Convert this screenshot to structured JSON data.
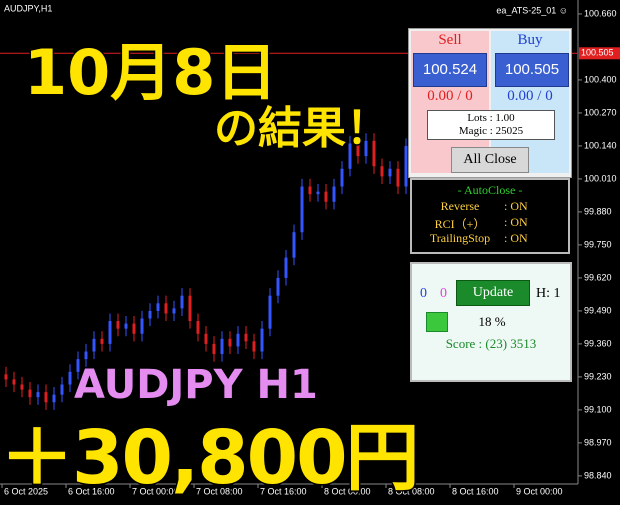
{
  "chart_data": {
    "type": "candlestick",
    "title": "AUDJPY,H1",
    "expert": "ea_ATS-25_01 ☺",
    "up_color": "#3355ff",
    "down_color": "#e02020",
    "open": [
      99.24,
      99.22,
      99.2,
      99.18,
      99.15,
      99.17,
      99.13,
      99.16,
      99.2,
      99.25,
      99.3,
      99.33,
      99.38,
      99.36,
      99.45,
      99.42,
      99.44,
      99.4,
      99.46,
      99.49,
      99.52,
      99.48,
      99.5,
      99.55,
      99.45,
      99.4,
      99.36,
      99.32,
      99.38,
      99.35,
      99.4,
      99.37,
      99.33,
      99.42,
      99.55,
      99.62,
      99.7,
      99.8,
      99.98,
      99.95,
      99.96,
      99.92,
      99.98,
      100.05,
      100.15,
      100.1,
      100.16,
      100.06,
      100.02,
      100.05,
      99.98
    ],
    "high": [
      99.27,
      99.25,
      99.23,
      99.21,
      99.2,
      99.2,
      99.19,
      99.23,
      99.28,
      99.33,
      99.36,
      99.41,
      99.41,
      99.48,
      99.48,
      99.47,
      99.47,
      99.49,
      99.52,
      99.55,
      99.55,
      99.53,
      99.58,
      99.58,
      99.48,
      99.43,
      99.39,
      99.41,
      99.41,
      99.43,
      99.43,
      99.4,
      99.45,
      99.58,
      99.65,
      99.73,
      99.83,
      100.01,
      100.01,
      99.99,
      99.99,
      100.01,
      100.08,
      100.18,
      100.18,
      100.19,
      100.19,
      100.09,
      100.08,
      100.08,
      100.17
    ],
    "low": [
      99.19,
      99.17,
      99.15,
      99.12,
      99.12,
      99.1,
      99.1,
      99.13,
      99.17,
      99.22,
      99.27,
      99.3,
      99.33,
      99.33,
      99.39,
      99.39,
      99.37,
      99.37,
      99.43,
      99.46,
      99.45,
      99.45,
      99.47,
      99.42,
      99.37,
      99.33,
      99.29,
      99.29,
      99.32,
      99.32,
      99.34,
      99.3,
      99.3,
      99.39,
      99.52,
      99.59,
      99.67,
      99.77,
      99.92,
      99.92,
      99.89,
      99.89,
      99.95,
      100.02,
      100.07,
      100.07,
      100.03,
      99.99,
      99.99,
      99.95,
      99.95
    ],
    "close": [
      99.22,
      99.2,
      99.18,
      99.15,
      99.17,
      99.13,
      99.16,
      99.2,
      99.25,
      99.3,
      99.33,
      99.38,
      99.36,
      99.45,
      99.42,
      99.44,
      99.4,
      99.46,
      99.49,
      99.52,
      99.48,
      99.5,
      99.55,
      99.45,
      99.4,
      99.36,
      99.32,
      99.38,
      99.35,
      99.4,
      99.37,
      99.33,
      99.42,
      99.55,
      99.62,
      99.7,
      99.8,
      99.98,
      99.95,
      99.96,
      99.92,
      99.98,
      100.05,
      100.15,
      100.1,
      100.16,
      100.06,
      100.02,
      100.05,
      99.98,
      100.14
    ],
    "ylim": [
      98.808,
      100.715
    ],
    "yticks": [
      {
        "value": 100.66,
        "label": "100.660"
      },
      {
        "value": 100.4,
        "label": "100.400"
      },
      {
        "value": 100.27,
        "label": "100.270"
      },
      {
        "value": 100.14,
        "label": "100.140"
      },
      {
        "value": 100.01,
        "label": "100.010"
      },
      {
        "value": 99.88,
        "label": "99.880"
      },
      {
        "value": 99.75,
        "label": "99.750"
      },
      {
        "value": 99.62,
        "label": "99.620"
      },
      {
        "value": 99.49,
        "label": "99.490"
      },
      {
        "value": 99.36,
        "label": "99.360"
      },
      {
        "value": 99.23,
        "label": "99.230"
      },
      {
        "value": 99.1,
        "label": "99.100"
      },
      {
        "value": 98.97,
        "label": "98.970"
      },
      {
        "value": 98.84,
        "label": "98.840"
      }
    ],
    "current_price": {
      "value": 100.505,
      "label": "100.505"
    },
    "xlim": [
      0,
      72.25
    ],
    "xticks": [
      {
        "value": 0,
        "label": "6 Oct 2025"
      },
      {
        "value": 8,
        "label": "6 Oct 16:00"
      },
      {
        "value": 16,
        "label": "7 Oct 00:00"
      },
      {
        "value": 24,
        "label": "7 Oct 08:00"
      },
      {
        "value": 32,
        "label": "7 Oct 16:00"
      },
      {
        "value": 40,
        "label": "8 Oct 00:00"
      },
      {
        "value": 48,
        "label": "8 Oct 08:00"
      },
      {
        "value": 56,
        "label": "8 Oct 16:00"
      },
      {
        "value": 64,
        "label": "9 Oct 00:00"
      }
    ]
  },
  "overlay": {
    "date": "10月8日",
    "result": "の結果！",
    "symbol": "AUDJPY H1",
    "profit": "＋30,800円"
  },
  "panel": {
    "sell_label": "Sell",
    "buy_label": "Buy",
    "sell_price": "100.524",
    "buy_price": "100.505",
    "sell_pos": "0.00 / 0",
    "buy_pos": "0.00 / 0",
    "lots": "Lots : 1.00",
    "magic": "Magic : 25025",
    "all_close": "All Close"
  },
  "autoclose": {
    "title": "- AutoClose -",
    "rows": [
      [
        "Reverse",
        ": ON"
      ],
      [
        "RCI（+）",
        ": ON"
      ],
      [
        "TrailingStop",
        ": ON"
      ]
    ]
  },
  "status": {
    "buy_count": "0",
    "sell_count": "0",
    "update": "Update",
    "h": "H: 1",
    "percent": "18 %",
    "score": "Score : (23) 3513"
  }
}
